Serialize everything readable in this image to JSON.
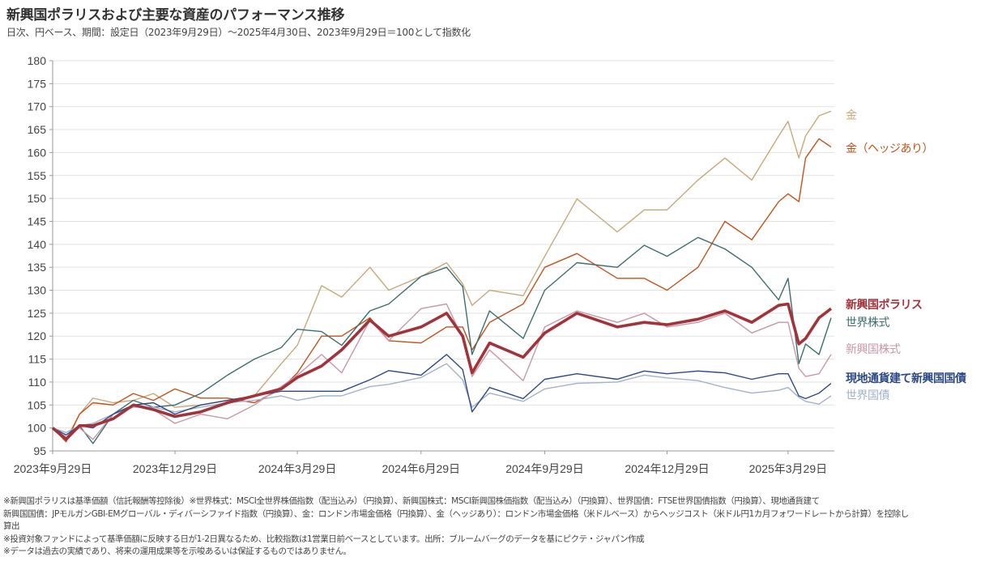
{
  "header": {
    "title": "新興国ポラリスおよび主要な資産のパフォーマンス推移",
    "subtitle": "日次、円ベース、期間：設定日（2023年9月29日）～2025年4月30日、2023年9月29日＝100として指数化"
  },
  "chart_data": {
    "type": "line",
    "title": "新興国ポラリスおよび主要な資産のパフォーマンス推移",
    "xlabel": "",
    "ylabel": "",
    "ylim": [
      95,
      180
    ],
    "yticks": [
      "95",
      "100",
      "105",
      "110",
      "115",
      "120",
      "125",
      "130",
      "135",
      "140",
      "145",
      "150",
      "155",
      "160",
      "165",
      "170",
      "175",
      "180"
    ],
    "xticks": [
      {
        "date": "2023-09-29",
        "label": "2023年9月29日"
      },
      {
        "date": "2023-12-29",
        "label": "2023年12月29日"
      },
      {
        "date": "2024-03-29",
        "label": "2024年3月29日"
      },
      {
        "date": "2024-06-29",
        "label": "2024年6月29日"
      },
      {
        "date": "2024-09-29",
        "label": "2024年9月29日"
      },
      {
        "date": "2024-12-29",
        "label": "2024年12月29日"
      },
      {
        "date": "2025-03-29",
        "label": "2025年3月29日"
      }
    ],
    "xlim": [
      "2023-09-29",
      "2025-04-30"
    ],
    "grid": true,
    "legend": "right (labels at line ends)",
    "x": [
      "2023-09-29",
      "2023-10-09",
      "2023-10-19",
      "2023-10-29",
      "2023-11-13",
      "2023-11-28",
      "2023-12-13",
      "2023-12-29",
      "2024-01-17",
      "2024-02-06",
      "2024-02-26",
      "2024-03-17",
      "2024-03-29",
      "2024-04-16",
      "2024-05-01",
      "2024-05-22",
      "2024-06-05",
      "2024-06-29",
      "2024-07-18",
      "2024-07-30",
      "2024-08-06",
      "2024-08-19",
      "2024-09-13",
      "2024-09-29",
      "2024-10-23",
      "2024-11-22",
      "2024-12-12",
      "2024-12-29",
      "2025-01-21",
      "2025-02-10",
      "2025-03-02",
      "2025-03-22",
      "2025-03-29",
      "2025-04-06",
      "2025-04-11",
      "2025-04-21",
      "2025-04-30"
    ],
    "series": [
      {
        "name": "金",
        "color": "#c9a877",
        "width": 1.4,
        "bold": false,
        "values": [
          100,
          97.5,
          103,
          106.5,
          105.5,
          106,
          107.5,
          104.5,
          105,
          106,
          107,
          114,
          118,
          131,
          128.5,
          135,
          130,
          133,
          136,
          131.4,
          126.7,
          130,
          128.8,
          137.4,
          149.9,
          142.7,
          147.5,
          147.5,
          154,
          158.8,
          154,
          163.6,
          166.8,
          158.8,
          163.6,
          168,
          169
        ]
      },
      {
        "name": "金（ヘッジあり）",
        "color": "#c2521a",
        "width": 1.4,
        "bold": false,
        "values": [
          100,
          97,
          103,
          105.5,
          105,
          107.5,
          106,
          108.5,
          106.5,
          106.5,
          105.5,
          108.5,
          112,
          120,
          120,
          124,
          119,
          118.5,
          122,
          122,
          117,
          123,
          127,
          135,
          138,
          132.6,
          132.6,
          130,
          135,
          145,
          141,
          149.3,
          151,
          149.3,
          158.8,
          163,
          161.2
        ]
      },
      {
        "name": "世界株式",
        "color": "#3b6f6f",
        "width": 1.4,
        "bold": false,
        "values": [
          100,
          98,
          100.5,
          96.6,
          103,
          106,
          104.5,
          105,
          107.5,
          111.5,
          115,
          117.5,
          121.5,
          121,
          118,
          125.5,
          127,
          133,
          135,
          130.8,
          116,
          125.5,
          119.5,
          130,
          136,
          135,
          139.8,
          137.4,
          141.5,
          139,
          135,
          127.9,
          132.6,
          114,
          118.3,
          116,
          124
        ]
      },
      {
        "name": "新興国株式",
        "color": "#c897a5",
        "width": 1.4,
        "bold": false,
        "values": [
          100,
          98,
          100,
          97.5,
          103,
          105,
          104,
          101,
          103,
          102,
          105,
          109,
          111.5,
          116,
          112,
          123.5,
          119,
          126,
          127,
          119.5,
          111.2,
          117,
          110.3,
          122,
          125.5,
          123,
          125,
          122,
          123,
          125,
          120.7,
          123,
          123,
          113,
          111.2,
          111.8,
          116
        ]
      },
      {
        "name": "世界国債",
        "color": "#a2b2cc",
        "width": 1.4,
        "bold": false,
        "values": [
          100,
          99,
          100.5,
          101,
          103,
          104.5,
          104.5,
          103.5,
          104.5,
          105.5,
          106,
          107,
          106,
          107,
          107,
          109,
          109.5,
          111,
          114,
          110.5,
          104.5,
          107.6,
          105.8,
          108.5,
          109.7,
          110,
          111.5,
          110.9,
          110.3,
          108.8,
          107.6,
          108.2,
          108.8,
          106.7,
          105.8,
          105.2,
          107
        ]
      },
      {
        "name": "現地通貨建て新興国国債",
        "color": "#2d4a86",
        "width": 1.4,
        "bold": true,
        "values": [
          100,
          98.5,
          100.5,
          100,
          103,
          105,
          105.5,
          103,
          105,
          106,
          107,
          108,
          108,
          108,
          108,
          110.5,
          112.5,
          111.5,
          116,
          112.7,
          103.5,
          108.8,
          106.4,
          110.6,
          111.8,
          110.6,
          112.4,
          111.8,
          112.4,
          112,
          110.6,
          111.8,
          111.8,
          107,
          106.4,
          107.6,
          109.7
        ]
      },
      {
        "name": "新興国ポラリス",
        "color": "#a2333a",
        "width": 3.6,
        "bold": true,
        "values": [
          100,
          97.5,
          100.5,
          100.5,
          102,
          105,
          104,
          102.5,
          103.5,
          105.5,
          107,
          108.5,
          111,
          113.5,
          117,
          123.5,
          120,
          122,
          125,
          120,
          112,
          118.5,
          115.4,
          120.7,
          125,
          122,
          123,
          122.5,
          123.7,
          125.5,
          123,
          126.7,
          127,
          118.3,
          119.5,
          124,
          126
        ]
      }
    ]
  },
  "notes": [
    "※新興国ポラリスは基準価額（信託報酬等控除後）※世界株式：MSCI全世界株価指数（配当込み）（円換算）、新興国株式：MSCI新興国株価指数（配当込み）（円換算）、世界国債：FTSE世界国債指数（円換算）、現地通貨建て",
    "新興国国債：JPモルガンGBI-EMグローバル・ディバーシファイド指数（円換算）、金：ロンドン市場金価格（円換算）、金（ヘッジあり）：ロンドン市場金価格（米ドルベース）からヘッジコスト（米ドル円1カ月フォワードレートから計算）を控除し",
    "算出",
    "※投資対象ファンドによって基準価額に反映する日が1-2日異なるため、比較指数は1営業日前ベースとしています。出所：ブルームバーグのデータを基にピクテ・ジャパン作成",
    "※データは過去の実績であり、将来の運用成果等を示唆あるいは保証するものではありません。"
  ]
}
